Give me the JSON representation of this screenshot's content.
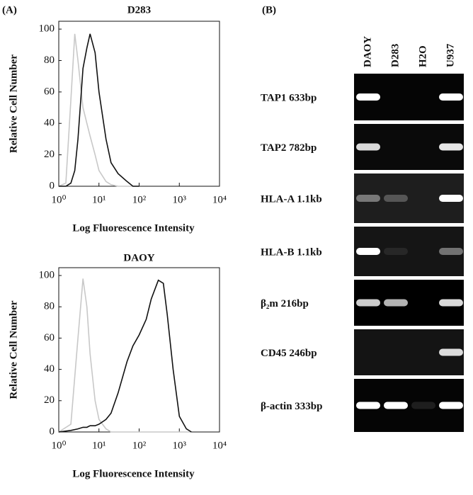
{
  "panel_a": {
    "label": "(A)"
  },
  "chart_data": [
    {
      "type": "line",
      "title": "D283",
      "x_label": "Log Fluorescence Intensity",
      "y_label": "Relative Cell Number",
      "xlog": true,
      "xlim": [
        1,
        10000
      ],
      "xticks": [
        {
          "value": 1,
          "label": "10⁰"
        },
        {
          "value": 10,
          "label": "10¹"
        },
        {
          "value": 100,
          "label": "10²"
        },
        {
          "value": 1000,
          "label": "10³"
        },
        {
          "value": 10000,
          "label": "10⁴"
        }
      ],
      "ylim": [
        0,
        105
      ],
      "yticks": [
        0,
        20,
        40,
        60,
        80,
        100
      ],
      "x": [
        1,
        1.5,
        2,
        2.5,
        3,
        4,
        5,
        6,
        8,
        10,
        15,
        20,
        30,
        50,
        70,
        100
      ],
      "series": [
        {
          "color": "#c8c8c8",
          "values": [
            0,
            2,
            55,
            97,
            80,
            50,
            40,
            32,
            20,
            10,
            3,
            1,
            0,
            0,
            0,
            0
          ]
        },
        {
          "color": "#111111",
          "values": [
            0,
            0,
            2,
            10,
            30,
            75,
            88,
            97,
            85,
            60,
            30,
            15,
            8,
            3,
            0,
            0
          ]
        }
      ]
    },
    {
      "type": "line",
      "title": "DAOY",
      "x_label": "Log Fluorescence Intensity",
      "y_label": "Relative Cell Number",
      "xlog": true,
      "xlim": [
        1,
        10000
      ],
      "xticks": [
        {
          "value": 1,
          "label": "10⁰"
        },
        {
          "value": 10,
          "label": "10¹"
        },
        {
          "value": 100,
          "label": "10²"
        },
        {
          "value": 1000,
          "label": "10³"
        },
        {
          "value": 10000,
          "label": "10⁴"
        }
      ],
      "ylim": [
        0,
        105
      ],
      "yticks": [
        0,
        20,
        40,
        60,
        80,
        100
      ],
      "x": [
        1,
        2,
        3,
        4,
        5,
        6,
        8,
        10,
        15,
        20,
        30,
        50,
        70,
        100,
        150,
        200,
        300,
        400,
        500,
        700,
        1000,
        1500,
        2000
      ],
      "series": [
        {
          "color": "#c8c8c8",
          "values": [
            0,
            5,
            60,
            98,
            80,
            50,
            20,
            8,
            2,
            0,
            0,
            0,
            0,
            0,
            0,
            0,
            0,
            0,
            0,
            0,
            0,
            0,
            0
          ]
        },
        {
          "color": "#111111",
          "values": [
            0,
            1,
            2,
            3,
            3,
            4,
            4,
            5,
            8,
            12,
            25,
            45,
            55,
            62,
            72,
            85,
            97,
            95,
            75,
            40,
            10,
            2,
            0
          ]
        }
      ]
    }
  ],
  "panel_b": {
    "label": "(B)",
    "lanes": [
      "DAOY",
      "D283",
      "H2O",
      "U937"
    ],
    "rows": [
      "TAP1 633bp",
      "TAP2 782bp",
      "HLA-A 1.1kb",
      "HLA-B 1.1kb",
      "β₂m 216bp",
      "CD45 246bp",
      "β-actin 333bp"
    ]
  }
}
